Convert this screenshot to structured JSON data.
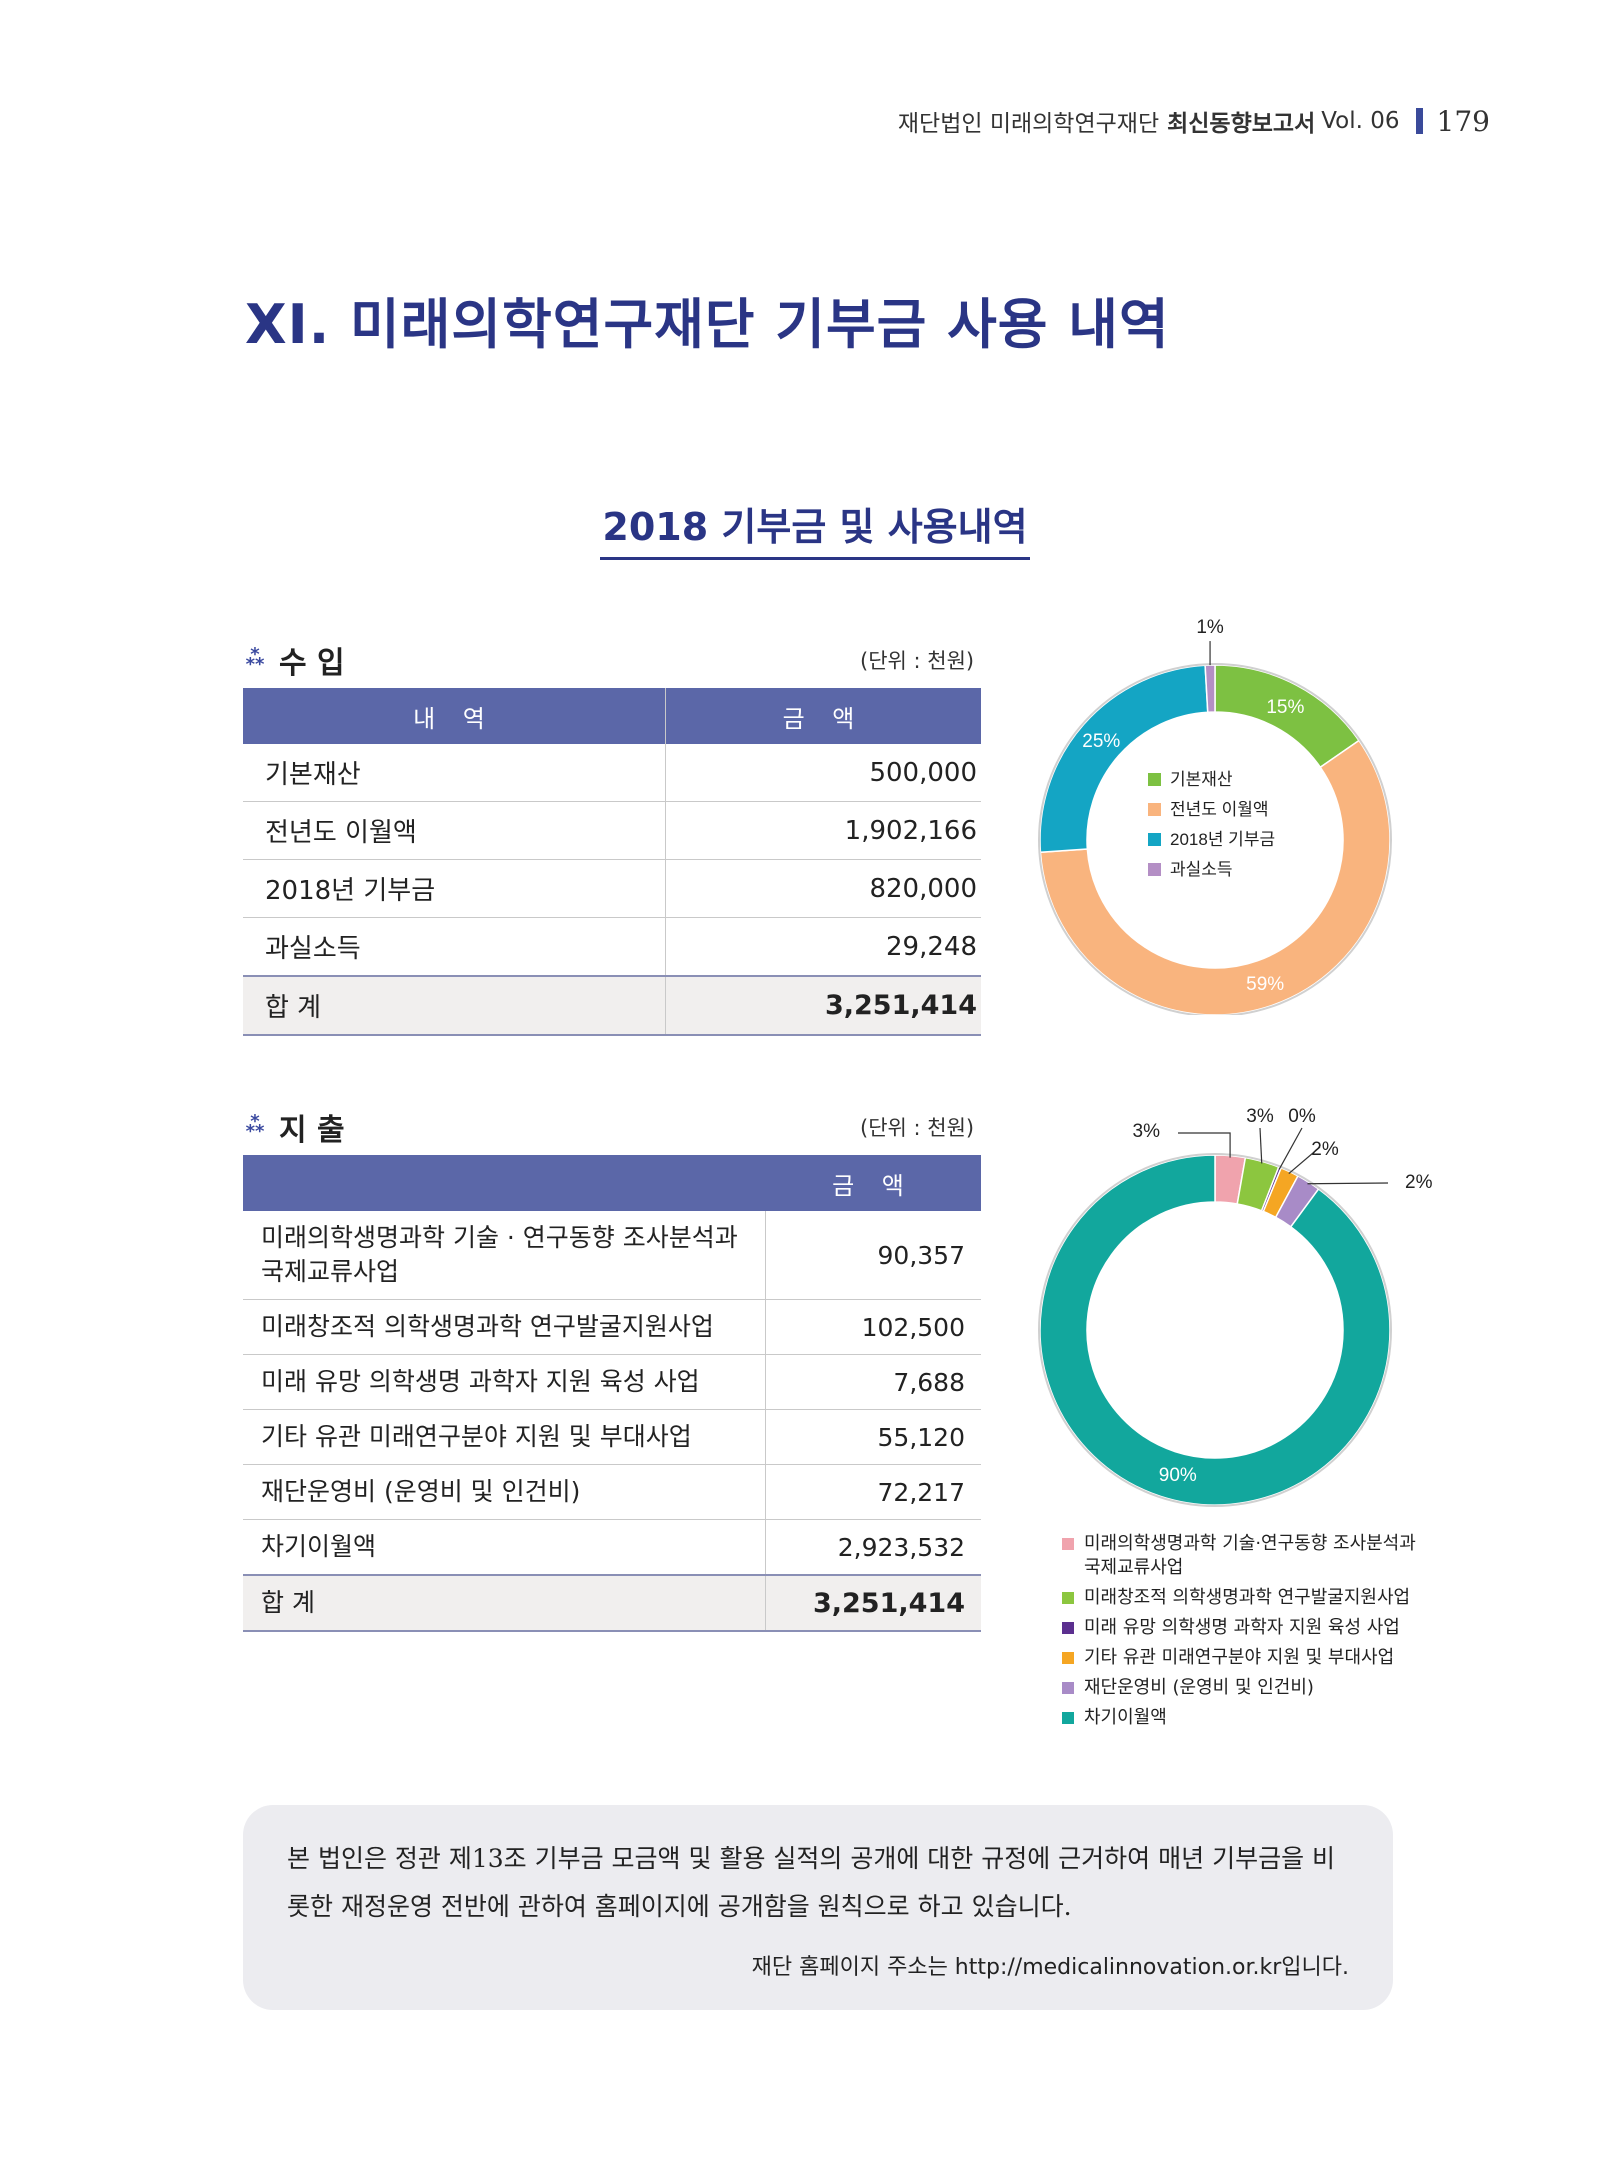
{
  "header": {
    "org": "재단법인 미래의학연구재단",
    "report": "최신동향보고서",
    "vol": "Vol. 06",
    "page": "179"
  },
  "title": "XI. 미래의학연구재단 기부금 사용 내역",
  "subtitle": "2018 기부금 및 사용내역",
  "income": {
    "heading": "수 입",
    "unit": "(단위 : 천원)",
    "col1": "내 역",
    "col2": "금 액",
    "rows": [
      {
        "label": "기본재산",
        "value": "500,000"
      },
      {
        "label": "전년도 이월액",
        "value": "1,902,166"
      },
      {
        "label": "2018년 기부금",
        "value": "820,000"
      },
      {
        "label": "과실소득",
        "value": "29,248"
      }
    ],
    "total_label": "합 계",
    "total_value": "3,251,414"
  },
  "expense": {
    "heading": "지 출",
    "unit": "(단위 : 천원)",
    "col2": "금 액",
    "rows": [
      {
        "label1": "미래의학생명과학 기술 · 연구동향 조사분석과",
        "label2": "국제교류사업",
        "value": "90,357"
      },
      {
        "label1": "미래창조적 의학생명과학 연구발굴지원사업",
        "value": "102,500"
      },
      {
        "label1": "미래 유망 의학생명 과학자 지원 육성 사업",
        "value": "7,688"
      },
      {
        "label1": "기타 유관 미래연구분야 지원 및 부대사업",
        "value": "55,120"
      },
      {
        "label1": "재단운영비 (운영비 및 인건비)",
        "value": "72,217"
      },
      {
        "label1": "차기이월액",
        "value": "2,923,532"
      }
    ],
    "total_label": "합 계",
    "total_value": "3,251,414"
  },
  "chart_data": [
    {
      "type": "pie",
      "donut": true,
      "categories": [
        "기본재산",
        "전년도 이월액",
        "2018년 기부금",
        "과실소득"
      ],
      "values": [
        500000,
        1902166,
        820000,
        29248
      ],
      "percent_labels": [
        "15%",
        "59%",
        "25%",
        "1%"
      ],
      "colors": [
        "#7dc142",
        "#f9b47e",
        "#14a5c4",
        "#b48fc5"
      ],
      "legend_position": "center"
    },
    {
      "type": "pie",
      "donut": true,
      "categories": [
        "미래의학생명과학 기술·연구동향 조사분석과 국제교류사업",
        "미래창조적 의학생명과학 연구발굴지원사업",
        "미래 유망 의학생명 과학자 지원 육성 사업",
        "기타 유관 미래연구분야 지원 및 부대사업",
        "재단운영비 (운영비 및 인건비)",
        "차기이월액"
      ],
      "legend_line1": [
        "미래의학생명과학 기술·연구동향 조사분석과",
        "미래창조적 의학생명과학 연구발굴지원사업",
        "미래 유망 의학생명 과학자 지원 육성 사업",
        "기타 유관 미래연구분야 지원 및 부대사업",
        "재단운영비 (운영비 및 인건비)",
        "차기이월액"
      ],
      "legend_line2": [
        "국제교류사업",
        "",
        "",
        "",
        "",
        ""
      ],
      "values": [
        90357,
        102500,
        7688,
        55120,
        72217,
        2923532
      ],
      "percent_labels": [
        "3%",
        "3%",
        "0%",
        "2%",
        "2%",
        "90%"
      ],
      "colors": [
        "#f0a3ad",
        "#8cc63f",
        "#5b2f8f",
        "#f5a623",
        "#a88bc7",
        "#12a79d"
      ],
      "legend_position": "bottom"
    }
  ],
  "note": {
    "body": "본 법인은 정관 제13조 기부금 모금액 및 활용 실적의 공개에 대한 규정에 근거하여 매년 기부금을 비롯한 재정운영 전반에 관하여 홈페이지에 공개함을 원칙으로 하고 있습니다.",
    "address": "재단 홈페이지 주소는 http://medicalinnovation.or.kr입니다."
  }
}
